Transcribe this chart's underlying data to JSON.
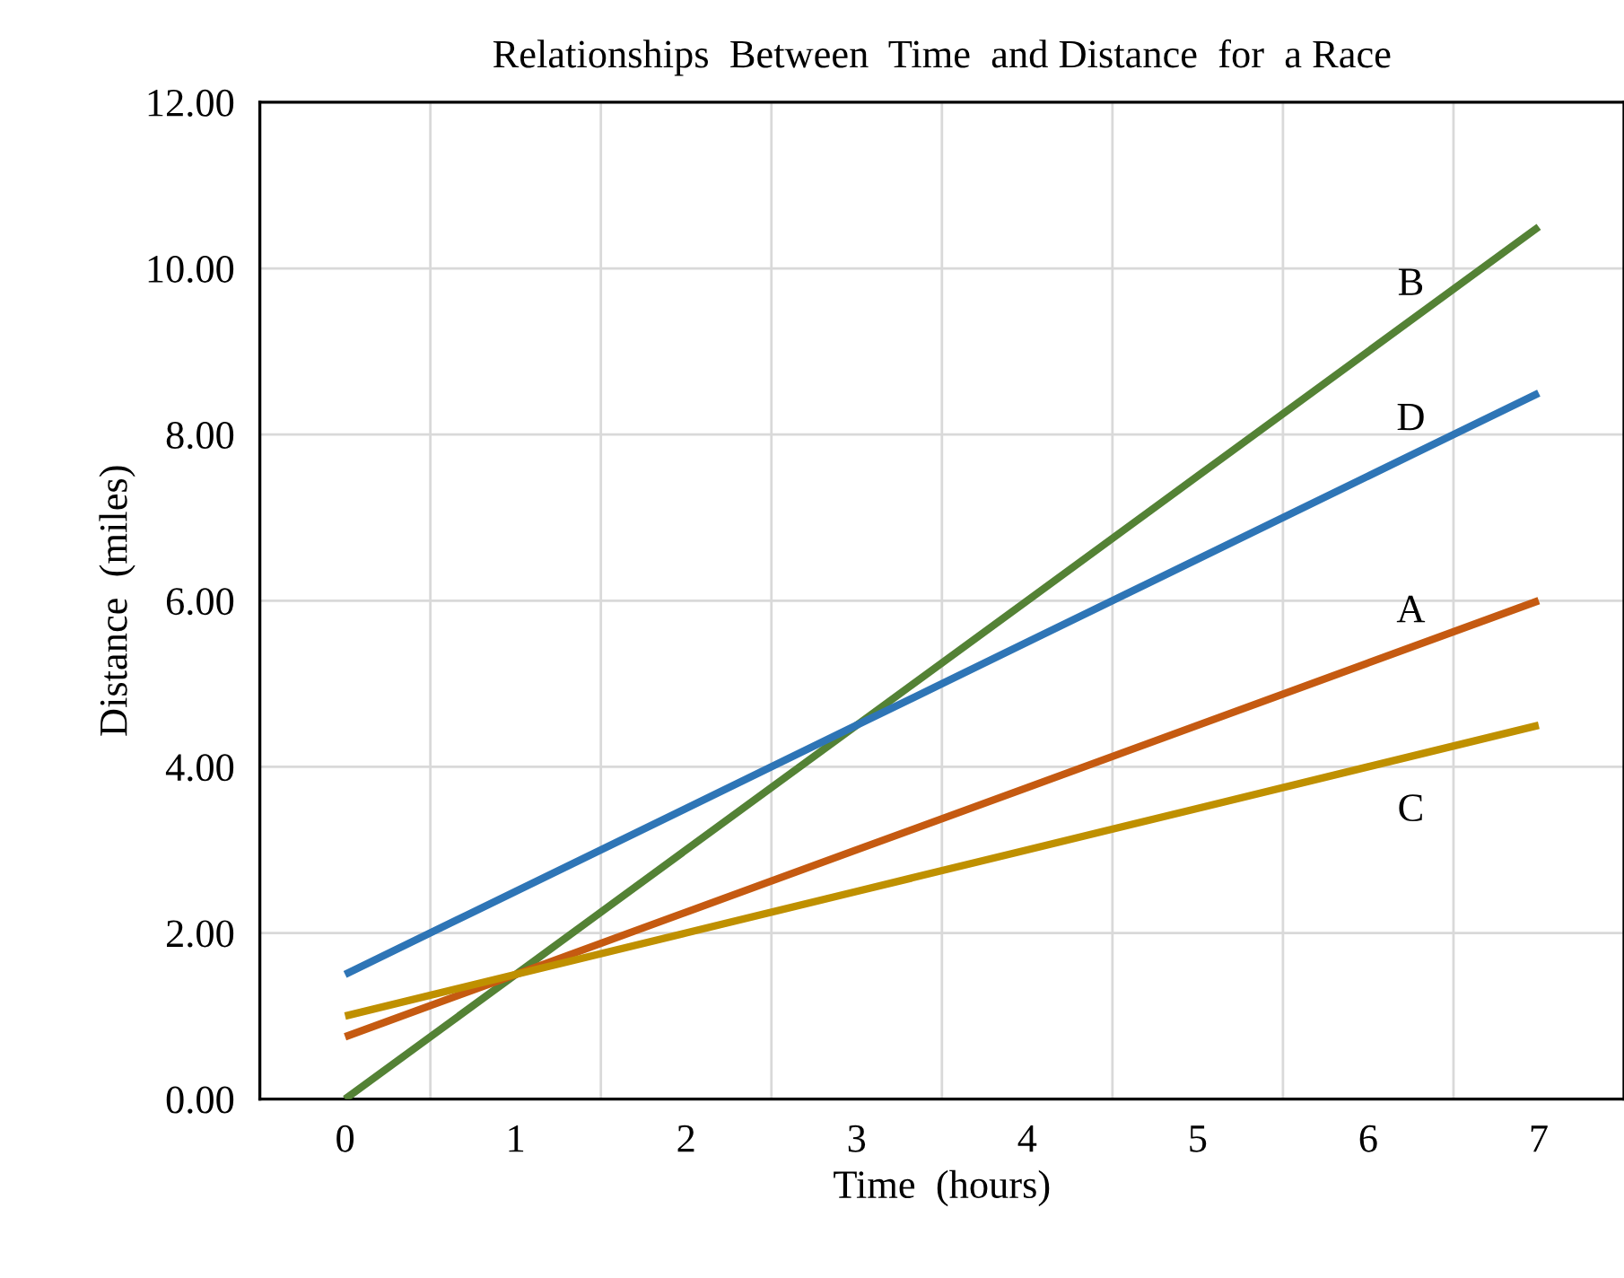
{
  "chart_data": {
    "type": "line",
    "title": "Relationships  Between  Time  and Distance  for  a Race",
    "xlabel": "Time  (hours)",
    "ylabel": "Distance  (miles)",
    "categories": [
      "0",
      "1",
      "2",
      "3",
      "4",
      "5",
      "6",
      "7"
    ],
    "series": [
      {
        "name": "B",
        "color": "#548235",
        "values": [
          0,
          1.5,
          3,
          4.5,
          6,
          7.5,
          9,
          10.5
        ]
      },
      {
        "name": "D",
        "color": "#2e75b6",
        "values": [
          1.5,
          2.5,
          3.5,
          4.5,
          5.5,
          6.5,
          7.5,
          8.5
        ]
      },
      {
        "name": "A",
        "color": "#c55a11",
        "values": [
          0.75,
          1.5,
          2.25,
          3,
          3.75,
          4.5,
          5.25,
          6
        ]
      },
      {
        "name": "C",
        "color": "#bf9000",
        "values": [
          1,
          1.5,
          2,
          2.5,
          3,
          3.5,
          4,
          4.5
        ]
      }
    ],
    "ylim": [
      0,
      12
    ],
    "yticks": [
      {
        "value": 0,
        "label": "0.00"
      },
      {
        "value": 2,
        "label": "2.00"
      },
      {
        "value": 4,
        "label": "4.00"
      },
      {
        "value": 6,
        "label": "6.00"
      },
      {
        "value": 8,
        "label": "8.00"
      },
      {
        "value": 10,
        "label": "10.00"
      },
      {
        "value": 12,
        "label": "12.00"
      }
    ],
    "grid": true,
    "legend": false
  }
}
